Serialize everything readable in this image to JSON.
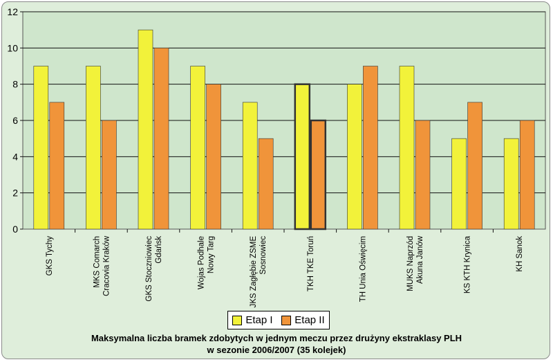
{
  "chart_data": {
    "type": "bar",
    "categories": [
      [
        "GKS Tychy"
      ],
      [
        "MKS Comarch",
        "Cracovia Kraków"
      ],
      [
        "GKS Stoczniowiec",
        "Gdańsk"
      ],
      [
        "Wojas Podhale",
        "Nowy Targ"
      ],
      [
        "JKS Zagłębie ZSME",
        "Sosnowiec"
      ],
      [
        "TKH TKE Toruń"
      ],
      [
        "TH Unia Oświęcim"
      ],
      [
        "MUKS Naprzód",
        "Akuna Janów"
      ],
      [
        "KS KTH Krynica"
      ],
      [
        "KH Sanok"
      ]
    ],
    "series": [
      {
        "name": "Etap I",
        "color": "#f2f23a",
        "values": [
          9,
          9,
          11,
          9,
          7,
          8,
          8,
          9,
          5,
          5
        ]
      },
      {
        "name": "Etap II",
        "color": "#f0943a",
        "values": [
          7,
          6,
          10,
          8,
          5,
          6,
          9,
          6,
          7,
          6
        ]
      }
    ],
    "highlighted_category_index": 5,
    "yticks": [
      0,
      2,
      4,
      6,
      8,
      10,
      12
    ],
    "ylim": [
      0,
      12
    ],
    "grid": true,
    "plot_background": "#cfe6cc",
    "legend_position": "bottom-center",
    "title_lines": [
      "Maksymalna liczba bramek zdobytych w jednym meczu przez drużyny ekstraklasy PLH",
      "w sezonie 2006/2007 (35 kolejek)"
    ]
  }
}
